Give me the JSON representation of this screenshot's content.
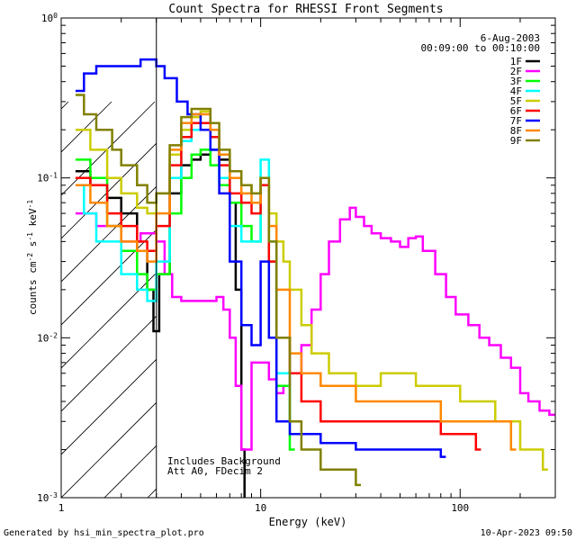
{
  "chart_data": {
    "type": "line",
    "title": "Count Spectra for RHESSI Front Segments",
    "xlabel": "Energy (keV)",
    "ylabel": "counts cm-2 s-1 keV-1",
    "x_scale": "log",
    "y_scale": "log",
    "xlim": [
      1,
      300
    ],
    "ylim": [
      0.001,
      1
    ],
    "x_ticks": [
      {
        "value": 1,
        "label": "1"
      },
      {
        "value": 10,
        "label": "10"
      },
      {
        "value": 100,
        "label": "100"
      }
    ],
    "y_ticks": [
      {
        "value": 0.001,
        "base": "10",
        "exp": "-3"
      },
      {
        "value": 0.01,
        "base": "10",
        "exp": "-2"
      },
      {
        "value": 0.1,
        "base": "10",
        "exp": "-1"
      },
      {
        "value": 1,
        "base": "10",
        "exp": "0"
      }
    ],
    "legend_date": "6-Aug-2003",
    "legend_time": "00:09:00 to 00:10:00",
    "legend_position": "top-right",
    "annotation_lines": [
      "Includes Background",
      "Att A0, FDecim 2"
    ],
    "hatched_region": {
      "x_max_keV": 3
    },
    "series": [
      {
        "name": "1F",
        "color": "#000000",
        "width": 2.5,
        "points": [
          [
            1.18,
            0.11
          ],
          [
            1.4,
            0.09
          ],
          [
            1.7,
            0.075
          ],
          [
            2.0,
            0.06
          ],
          [
            2.4,
            0.035
          ],
          [
            2.7,
            0.02
          ],
          [
            2.9,
            0.011
          ],
          [
            3.1,
            0.025
          ],
          [
            3.5,
            0.08
          ],
          [
            4,
            0.12
          ],
          [
            4.5,
            0.13
          ],
          [
            5,
            0.14
          ],
          [
            5.6,
            0.15
          ],
          [
            6.2,
            0.13
          ],
          [
            7,
            0.07
          ],
          [
            7.5,
            0.02
          ],
          [
            8,
            0.002
          ],
          [
            8.3,
            0.0008
          ]
        ]
      },
      {
        "name": "2F",
        "color": "#ff00ff",
        "width": 2.5,
        "points": [
          [
            1.18,
            0.06
          ],
          [
            1.5,
            0.05
          ],
          [
            2.0,
            0.04
          ],
          [
            2.5,
            0.045
          ],
          [
            3.0,
            0.04
          ],
          [
            3.3,
            0.025
          ],
          [
            3.6,
            0.018
          ],
          [
            4,
            0.017
          ],
          [
            5,
            0.017
          ],
          [
            6,
            0.018
          ],
          [
            6.5,
            0.015
          ],
          [
            7,
            0.01
          ],
          [
            7.5,
            0.005
          ],
          [
            8,
            0.002
          ],
          [
            9,
            0.007
          ],
          [
            10,
            0.007
          ],
          [
            11,
            0.0055
          ],
          [
            12,
            0.0045
          ],
          [
            13,
            0.005
          ],
          [
            14,
            0.006
          ],
          [
            16,
            0.009
          ],
          [
            18,
            0.015
          ],
          [
            20,
            0.025
          ],
          [
            22,
            0.04
          ],
          [
            25,
            0.055
          ],
          [
            28,
            0.065
          ],
          [
            30,
            0.057
          ],
          [
            33,
            0.05
          ],
          [
            36,
            0.045
          ],
          [
            40,
            0.042
          ],
          [
            45,
            0.04
          ],
          [
            50,
            0.037
          ],
          [
            55,
            0.042
          ],
          [
            60,
            0.043
          ],
          [
            65,
            0.035
          ],
          [
            75,
            0.025
          ],
          [
            85,
            0.018
          ],
          [
            95,
            0.014
          ],
          [
            110,
            0.012
          ],
          [
            125,
            0.01
          ],
          [
            140,
            0.009
          ],
          [
            160,
            0.0075
          ],
          [
            180,
            0.0065
          ],
          [
            200,
            0.0045
          ],
          [
            220,
            0.004
          ],
          [
            250,
            0.0035
          ],
          [
            280,
            0.0033
          ],
          [
            300,
            0.0033
          ]
        ]
      },
      {
        "name": "3F",
        "color": "#00ff00",
        "width": 2.5,
        "points": [
          [
            1.18,
            0.13
          ],
          [
            1.4,
            0.1
          ],
          [
            1.7,
            0.05
          ],
          [
            2.0,
            0.035
          ],
          [
            2.4,
            0.025
          ],
          [
            2.7,
            0.02
          ],
          [
            3.0,
            0.025
          ],
          [
            3.5,
            0.06
          ],
          [
            4,
            0.1
          ],
          [
            4.5,
            0.14
          ],
          [
            5,
            0.15
          ],
          [
            5.6,
            0.12
          ],
          [
            6.2,
            0.09
          ],
          [
            7,
            0.07
          ],
          [
            8,
            0.05
          ],
          [
            9,
            0.04
          ],
          [
            10,
            0.1
          ],
          [
            11,
            0.03
          ],
          [
            12,
            0.005
          ],
          [
            14,
            0.002
          ]
        ]
      },
      {
        "name": "4F",
        "color": "#00ffff",
        "width": 2.5,
        "points": [
          [
            1.18,
            0.09
          ],
          [
            1.3,
            0.06
          ],
          [
            1.5,
            0.04
          ],
          [
            2.0,
            0.025
          ],
          [
            2.4,
            0.02
          ],
          [
            2.7,
            0.017
          ],
          [
            3.0,
            0.03
          ],
          [
            3.5,
            0.1
          ],
          [
            4,
            0.17
          ],
          [
            4.5,
            0.2
          ],
          [
            5,
            0.2
          ],
          [
            5.6,
            0.15
          ],
          [
            6.2,
            0.1
          ],
          [
            7,
            0.05
          ],
          [
            8,
            0.04
          ],
          [
            9,
            0.04
          ],
          [
            10,
            0.13
          ],
          [
            11,
            0.04
          ],
          [
            12,
            0.006
          ],
          [
            14,
            0.003
          ]
        ]
      },
      {
        "name": "5F",
        "color": "#cccc00",
        "width": 2.5,
        "points": [
          [
            1.18,
            0.2
          ],
          [
            1.4,
            0.15
          ],
          [
            1.7,
            0.1
          ],
          [
            2.0,
            0.08
          ],
          [
            2.4,
            0.065
          ],
          [
            2.7,
            0.06
          ],
          [
            3.0,
            0.08
          ],
          [
            3.5,
            0.14
          ],
          [
            4,
            0.2
          ],
          [
            4.5,
            0.24
          ],
          [
            5,
            0.26
          ],
          [
            5.6,
            0.2
          ],
          [
            6.2,
            0.14
          ],
          [
            7,
            0.1
          ],
          [
            8,
            0.09
          ],
          [
            9,
            0.08
          ],
          [
            10,
            0.1
          ],
          [
            11,
            0.06
          ],
          [
            12,
            0.04
          ],
          [
            13,
            0.03
          ],
          [
            14,
            0.02
          ],
          [
            16,
            0.012
          ],
          [
            18,
            0.008
          ],
          [
            22,
            0.006
          ],
          [
            30,
            0.005
          ],
          [
            40,
            0.006
          ],
          [
            60,
            0.005
          ],
          [
            100,
            0.004
          ],
          [
            150,
            0.003
          ],
          [
            200,
            0.002
          ],
          [
            260,
            0.0015
          ]
        ]
      },
      {
        "name": "6F",
        "color": "#ff0000",
        "width": 2.5,
        "points": [
          [
            1.18,
            0.1
          ],
          [
            1.4,
            0.09
          ],
          [
            1.7,
            0.06
          ],
          [
            2.0,
            0.05
          ],
          [
            2.4,
            0.04
          ],
          [
            2.7,
            0.035
          ],
          [
            3.0,
            0.05
          ],
          [
            3.5,
            0.12
          ],
          [
            4,
            0.18
          ],
          [
            4.5,
            0.22
          ],
          [
            5,
            0.22
          ],
          [
            5.6,
            0.18
          ],
          [
            6.2,
            0.12
          ],
          [
            7,
            0.08
          ],
          [
            8,
            0.07
          ],
          [
            9,
            0.06
          ],
          [
            10,
            0.09
          ],
          [
            11,
            0.03
          ],
          [
            12,
            0.01
          ],
          [
            14,
            0.006
          ],
          [
            16,
            0.004
          ],
          [
            20,
            0.003
          ],
          [
            30,
            0.003
          ],
          [
            50,
            0.003
          ],
          [
            80,
            0.0025
          ],
          [
            120,
            0.002
          ]
        ]
      },
      {
        "name": "7F",
        "color": "#0000ff",
        "width": 2.5,
        "points": [
          [
            1.18,
            0.35
          ],
          [
            1.3,
            0.45
          ],
          [
            1.5,
            0.5
          ],
          [
            1.8,
            0.5
          ],
          [
            2.0,
            0.5
          ],
          [
            2.5,
            0.55
          ],
          [
            3.0,
            0.5
          ],
          [
            3.3,
            0.42
          ],
          [
            3.8,
            0.3
          ],
          [
            4.3,
            0.25
          ],
          [
            5,
            0.2
          ],
          [
            5.6,
            0.15
          ],
          [
            6.2,
            0.08
          ],
          [
            7,
            0.03
          ],
          [
            8,
            0.012
          ],
          [
            9,
            0.009
          ],
          [
            10,
            0.03
          ],
          [
            11,
            0.01
          ],
          [
            12,
            0.003
          ],
          [
            14,
            0.0025
          ],
          [
            20,
            0.0022
          ],
          [
            30,
            0.002
          ],
          [
            50,
            0.002
          ],
          [
            80,
            0.0018
          ]
        ]
      },
      {
        "name": "8F",
        "color": "#ff8800",
        "width": 2.5,
        "points": [
          [
            1.18,
            0.09
          ],
          [
            1.4,
            0.07
          ],
          [
            1.7,
            0.05
          ],
          [
            2.0,
            0.04
          ],
          [
            2.4,
            0.035
          ],
          [
            2.7,
            0.03
          ],
          [
            3.0,
            0.06
          ],
          [
            3.5,
            0.15
          ],
          [
            4,
            0.22
          ],
          [
            4.5,
            0.25
          ],
          [
            5,
            0.25
          ],
          [
            5.6,
            0.2
          ],
          [
            6.2,
            0.14
          ],
          [
            7,
            0.1
          ],
          [
            8,
            0.08
          ],
          [
            9,
            0.07
          ],
          [
            10,
            0.1
          ],
          [
            11,
            0.05
          ],
          [
            12,
            0.02
          ],
          [
            14,
            0.008
          ],
          [
            16,
            0.006
          ],
          [
            20,
            0.005
          ],
          [
            30,
            0.004
          ],
          [
            50,
            0.004
          ],
          [
            80,
            0.003
          ],
          [
            120,
            0.003
          ],
          [
            180,
            0.002
          ]
        ]
      },
      {
        "name": "9F",
        "color": "#808000",
        "width": 2.5,
        "points": [
          [
            1.18,
            0.33
          ],
          [
            1.3,
            0.25
          ],
          [
            1.5,
            0.2
          ],
          [
            1.8,
            0.15
          ],
          [
            2.0,
            0.12
          ],
          [
            2.4,
            0.09
          ],
          [
            2.7,
            0.07
          ],
          [
            3.0,
            0.08
          ],
          [
            3.5,
            0.16
          ],
          [
            4,
            0.24
          ],
          [
            4.5,
            0.27
          ],
          [
            5,
            0.27
          ],
          [
            5.6,
            0.22
          ],
          [
            6.2,
            0.15
          ],
          [
            7,
            0.11
          ],
          [
            8,
            0.09
          ],
          [
            9,
            0.08
          ],
          [
            10,
            0.1
          ],
          [
            11,
            0.04
          ],
          [
            12,
            0.01
          ],
          [
            14,
            0.003
          ],
          [
            16,
            0.002
          ],
          [
            20,
            0.0015
          ],
          [
            30,
            0.0012
          ]
        ]
      }
    ]
  },
  "footer": {
    "left": "Generated by hsi_min_spectra_plot.pro",
    "right": "10-Apr-2023 09:50"
  }
}
